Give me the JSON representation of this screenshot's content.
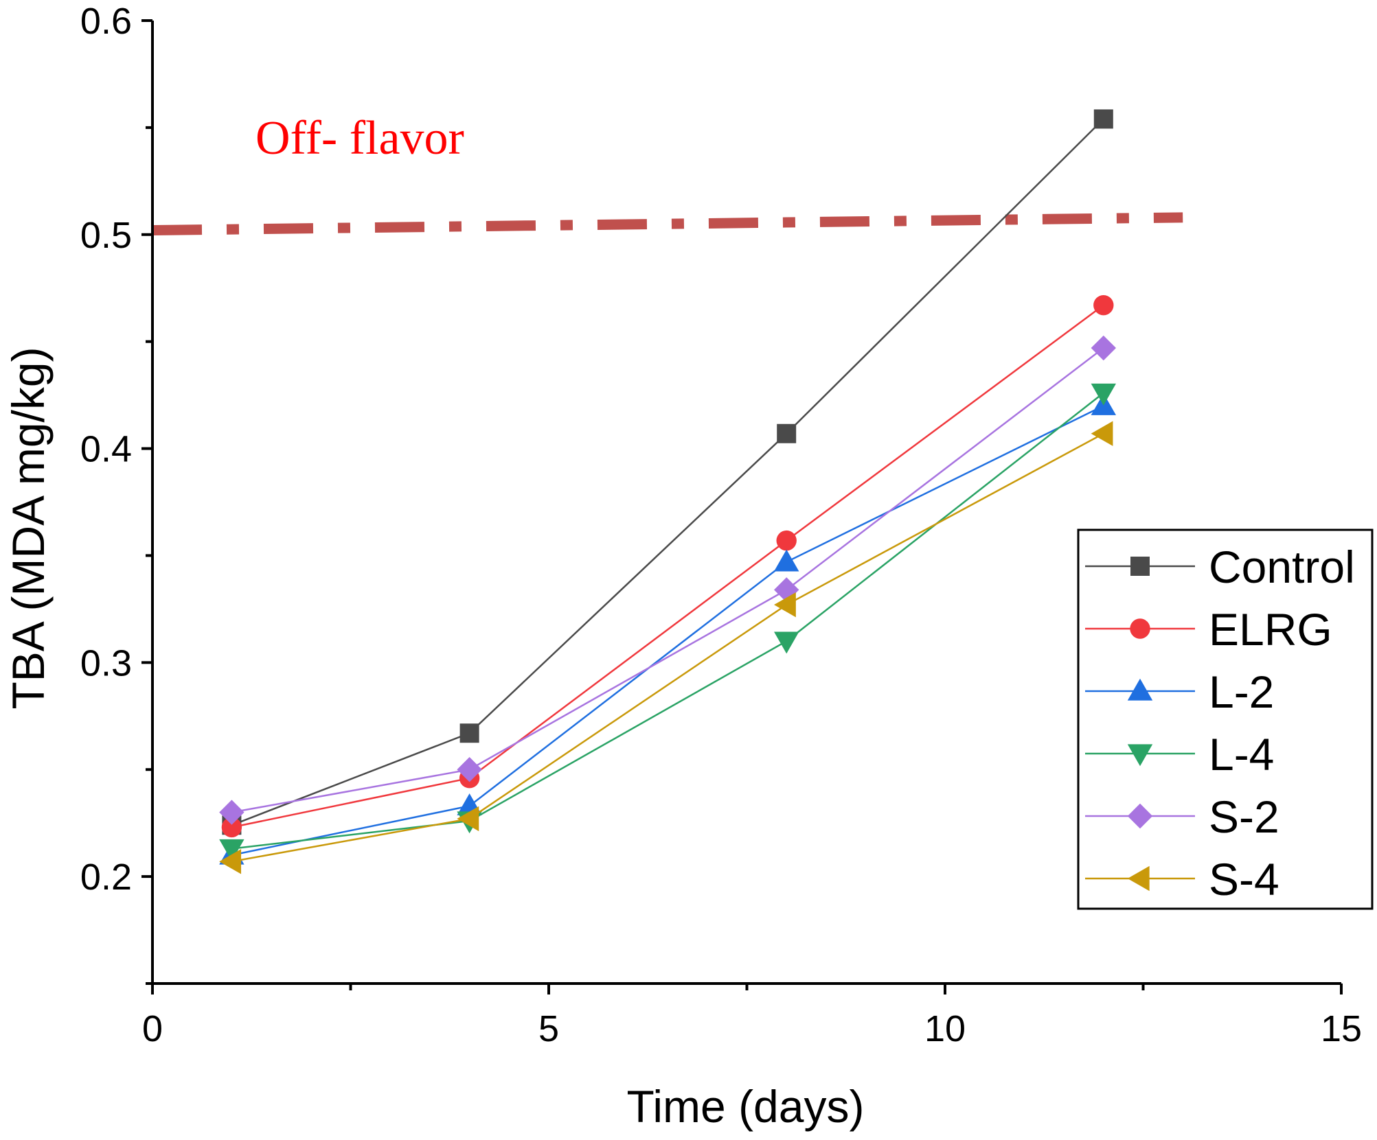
{
  "chart_data": {
    "type": "line",
    "xlabel": "Time (days)",
    "ylabel": "TBA (MDA mg/kg)",
    "xlim": [
      0,
      15
    ],
    "ylim": [
      0.15,
      0.6
    ],
    "xticks": [
      "0",
      "5",
      "10",
      "15"
    ],
    "yticks": [
      "0.2",
      "0.3",
      "0.4",
      "0.5",
      "0.6"
    ],
    "x": [
      1,
      4,
      8,
      12
    ],
    "legend_position": "right",
    "grid": false,
    "series": [
      {
        "name": "Control",
        "marker": "square",
        "color": "#4a4a4a",
        "values": [
          0.224,
          0.267,
          0.407,
          0.554
        ]
      },
      {
        "name": "ELRG",
        "marker": "circle",
        "color": "#f0383d",
        "values": [
          0.223,
          0.246,
          0.357,
          0.467
        ]
      },
      {
        "name": "L-2",
        "marker": "triangle-up",
        "color": "#1f6fe0",
        "values": [
          0.21,
          0.233,
          0.347,
          0.42
        ]
      },
      {
        "name": "L-4",
        "marker": "triangle-down",
        "color": "#2aa365",
        "values": [
          0.213,
          0.226,
          0.31,
          0.426
        ]
      },
      {
        "name": "S-2",
        "marker": "diamond",
        "color": "#a874e0",
        "values": [
          0.23,
          0.25,
          0.334,
          0.447
        ]
      },
      {
        "name": "S-4",
        "marker": "triangle-left",
        "color": "#c9990a",
        "values": [
          0.207,
          0.227,
          0.327,
          0.407
        ]
      }
    ],
    "annotations": [
      {
        "text": "Off- flavor",
        "color": "#ff0000"
      }
    ],
    "threshold": {
      "x": [
        0,
        13
      ],
      "y": [
        0.502,
        0.508
      ],
      "color": "#c0504d",
      "style": "dash-dot"
    }
  }
}
